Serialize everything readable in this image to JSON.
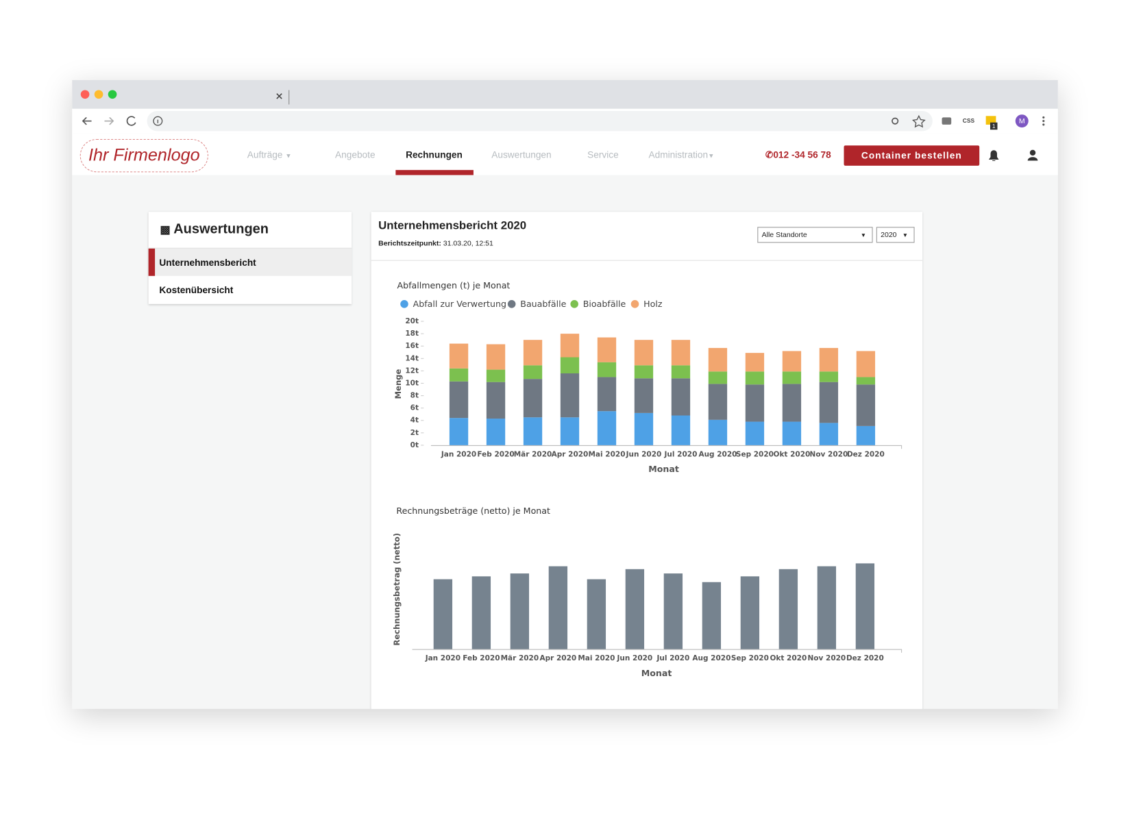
{
  "toolbar": {
    "css": "CSS",
    "badge": "1",
    "avatar": "M"
  },
  "header": {
    "logo": "Ihr Firmenlogo",
    "nav": [
      "Aufträge",
      "Angebote",
      "Rechnungen",
      "Auswertungen",
      "Service",
      "Administration"
    ],
    "phone": "012 -34 56 78",
    "cta": "Container bestellen"
  },
  "sidebar": {
    "title": "Auswertungen",
    "items": [
      "Unternehmensbericht",
      "Kostenübersicht"
    ]
  },
  "report": {
    "title": "Unternehmensbericht 2020",
    "timestamp_label": "Berichtszeitpunkt:",
    "timestamp": "31.03.20, 12:51",
    "location_select": "Alle Standorte",
    "year_select": "2020"
  },
  "chart_data": [
    {
      "type": "stacked_bar",
      "title": "Abfallmengen (t) je Monat",
      "x_label": "Monat",
      "y_label": "Menge",
      "categories": [
        "Jan 2020",
        "Feb 2020",
        "Mär 2020",
        "Apr 2020",
        "Mai 2020",
        "Jun 2020",
        "Jul 2020",
        "Aug 2020",
        "Sep 2020",
        "Okt 2020",
        "Nov 2020",
        "Dez 2020"
      ],
      "series": [
        {
          "name": "Abfall zur Verwertung",
          "color": "#4ea1e6",
          "values": [
            4.4,
            4.3,
            4.5,
            4.5,
            5.5,
            5.2,
            4.8,
            4.1,
            3.8,
            3.8,
            3.6,
            3.1
          ]
        },
        {
          "name": "Bauabfälle",
          "color": "#6f7883",
          "values": [
            5.9,
            5.9,
            6.2,
            7.1,
            5.5,
            5.6,
            6.0,
            5.8,
            6.0,
            6.1,
            6.6,
            6.7
          ]
        },
        {
          "name": "Bioabfälle",
          "color": "#7cc04f",
          "values": [
            2.1,
            2.0,
            2.2,
            2.6,
            2.4,
            2.1,
            2.1,
            2.0,
            2.1,
            2.0,
            1.7,
            1.2
          ]
        },
        {
          "name": "Holz",
          "color": "#f2a66f",
          "values": [
            4.0,
            4.1,
            4.1,
            3.8,
            4.0,
            4.1,
            4.1,
            3.8,
            3.0,
            3.3,
            3.8,
            4.2
          ]
        }
      ],
      "ylim": [
        0,
        20
      ],
      "yticks": [
        {
          "value": 0,
          "label": "0t"
        },
        {
          "value": 2,
          "label": "2t"
        },
        {
          "value": 4,
          "label": "4t"
        },
        {
          "value": 6,
          "label": "6t"
        },
        {
          "value": 8,
          "label": "8t"
        },
        {
          "value": 10,
          "label": "10t"
        },
        {
          "value": 12,
          "label": "12t"
        },
        {
          "value": 14,
          "label": "14t"
        },
        {
          "value": 16,
          "label": "16t"
        },
        {
          "value": 18,
          "label": "18t"
        },
        {
          "value": 20,
          "label": "20t"
        }
      ],
      "legend": "top-left"
    },
    {
      "type": "bar",
      "title": "Rechnungsbeträge (netto) je Monat",
      "x_label": "Monat",
      "y_label": "Rechnungsbetrag (netto)",
      "categories": [
        "Jan 2020",
        "Feb 2020",
        "Mär 2020",
        "Apr 2020",
        "Mai 2020",
        "Jun 2020",
        "Jul 2020",
        "Aug 2020",
        "Sep 2020",
        "Okt 2020",
        "Nov 2020",
        "Dez 2020"
      ],
      "values": [
        97,
        101,
        105,
        115,
        97,
        111,
        105,
        93,
        101,
        111,
        115,
        119
      ],
      "color": "#76838f",
      "ylim": [
        0,
        160
      ]
    }
  ]
}
